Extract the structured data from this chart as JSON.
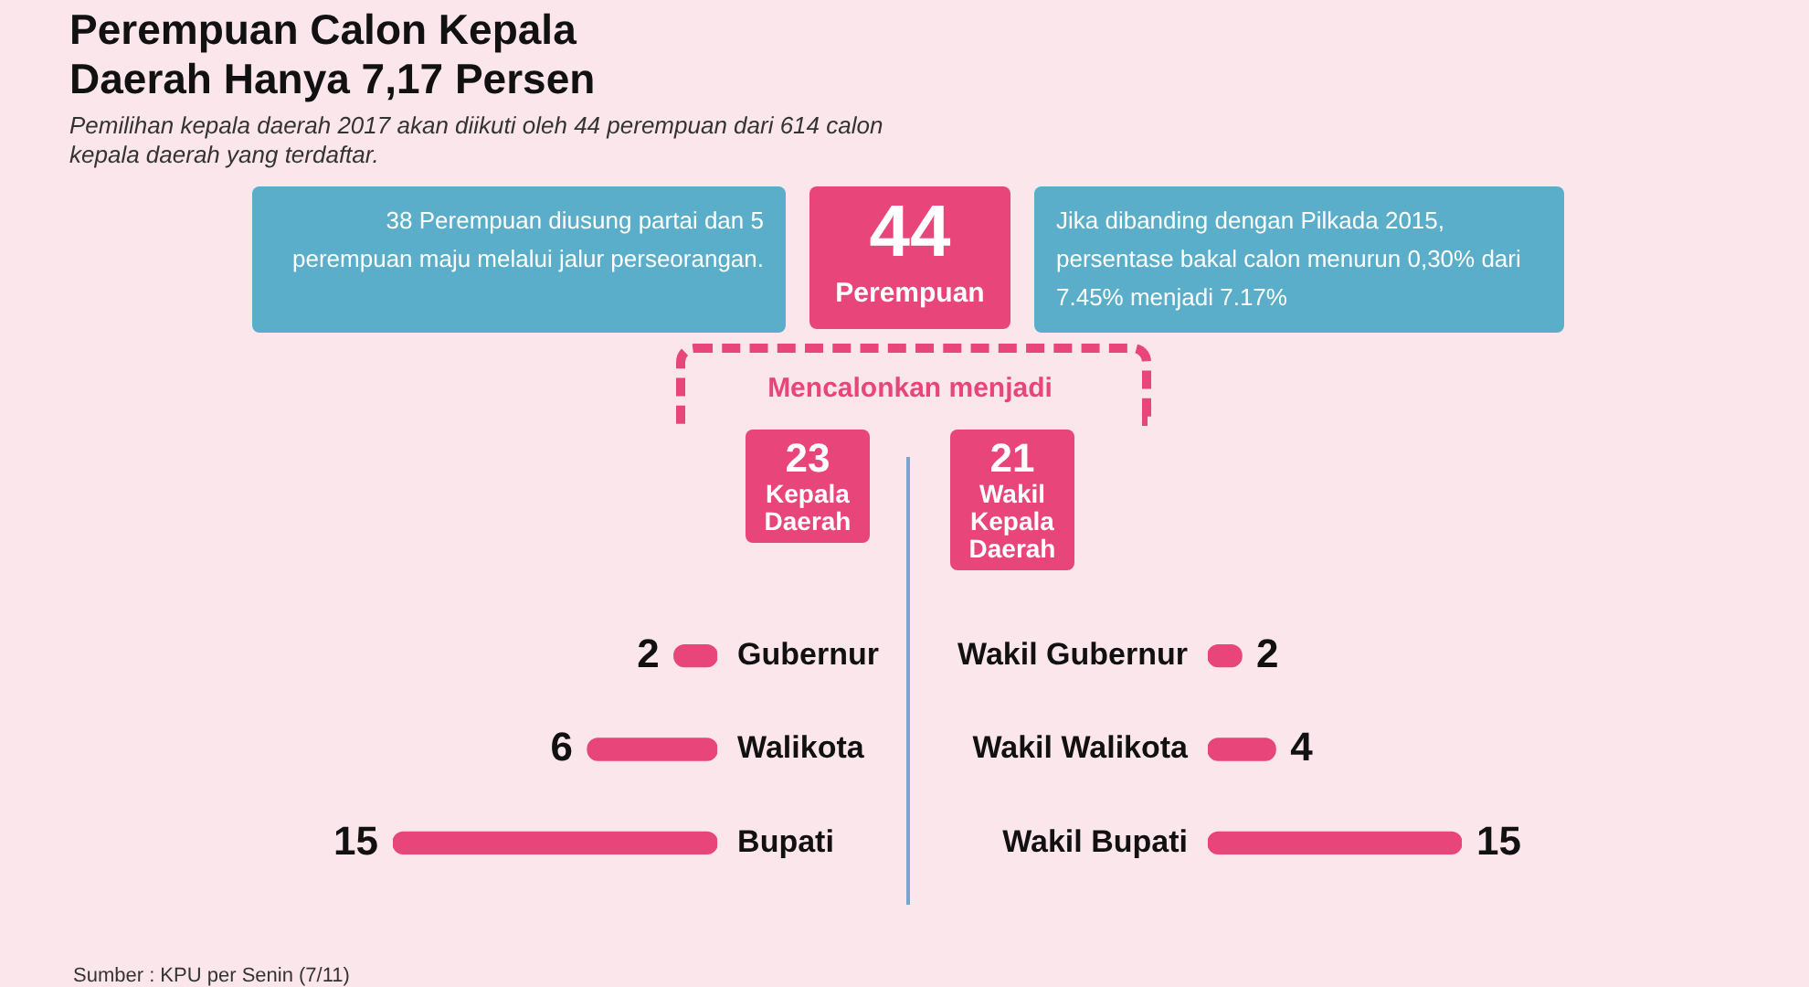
{
  "chart_data": [
    {
      "type": "other",
      "title": "Perempuan Calon Kepala Daerah Hanya 7,17 Persen",
      "subtitle": "Pemilihan kepala daerah 2017 akan diikuti oleh 44 perempuan dari 614 calon kepala daerah yang terdaftar.",
      "annotations": [
        "38 Perempuan diusung partai dan 5 perempuan maju melalui jalur perseorangan.",
        "44",
        "Perempuan",
        "Jika dibanding dengan Pilkada 2015, persentase bakal calon menurun 0,30% dari 7.45% menjadi 7.17%",
        "Mencalonkan menjadi",
        "Sumber : KPU per Senin (7/11)"
      ]
    },
    {
      "type": "bar",
      "orientation": "horizontal",
      "title": "23",
      "subtitle": "Kepala Daerah",
      "categories": [
        "Gubernur",
        "Walikota",
        "Bupati"
      ],
      "values": [
        2,
        6,
        15
      ],
      "color": "#e8457b",
      "data_labels": true
    },
    {
      "type": "bar",
      "orientation": "horizontal",
      "title": "21",
      "subtitle": "Wakil Kepala Daerah",
      "categories": [
        "Wakil Gubernur",
        "Wakil Walikota",
        "Wakil Bupati"
      ],
      "values": [
        2,
        4,
        15
      ],
      "color": "#e8457b",
      "data_labels": true
    }
  ]
}
